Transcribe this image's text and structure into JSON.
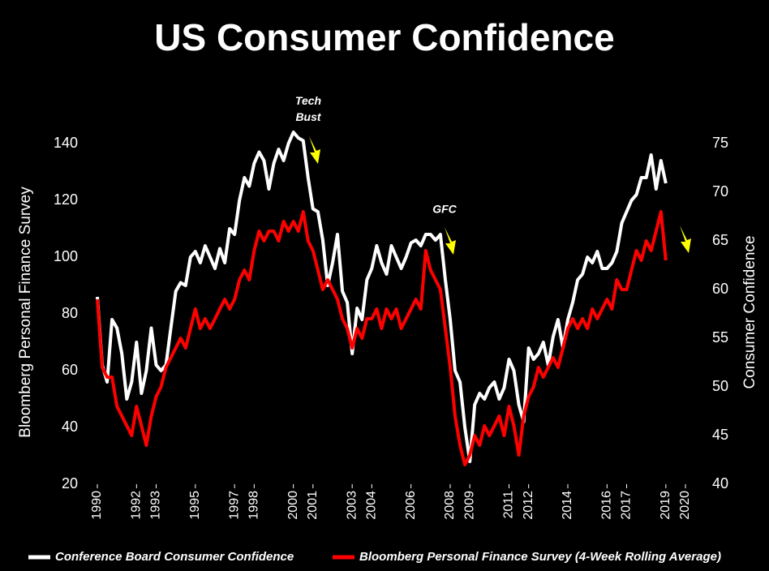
{
  "chart_data": {
    "type": "line",
    "title": "US Consumer Confidence",
    "y_label": "Bloomberg Personal Finance Survey",
    "y2_label": "Consumer Confidence",
    "annotations": [
      "Tech\nBust",
      "GFC"
    ],
    "xlim": [
      1990,
      2020
    ],
    "xticks": [
      1990,
      1992,
      1993,
      1995,
      1997,
      1998,
      2000,
      2001,
      2003,
      2004,
      2006,
      2008,
      2009,
      2011,
      2012,
      2014,
      2016,
      2017,
      2019,
      2020
    ],
    "ylim": [
      20,
      140
    ],
    "yticks": [
      20,
      40,
      60,
      80,
      100,
      120,
      140
    ],
    "y2lim": [
      40,
      75
    ],
    "y2ticks": [
      40,
      45,
      50,
      55,
      60,
      65,
      70,
      75
    ],
    "x": [
      1990,
      1990.25,
      1990.5,
      1990.75,
      1991,
      1991.25,
      1991.5,
      1991.75,
      1992,
      1992.25,
      1992.5,
      1992.75,
      1993,
      1993.25,
      1993.5,
      1993.75,
      1994,
      1994.25,
      1994.5,
      1994.75,
      1995,
      1995.25,
      1995.5,
      1995.75,
      1996,
      1996.25,
      1996.5,
      1996.75,
      1997,
      1997.25,
      1997.5,
      1997.75,
      1998,
      1998.25,
      1998.5,
      1998.75,
      1999,
      1999.25,
      1999.5,
      1999.75,
      2000,
      2000.25,
      2000.5,
      2000.75,
      2001,
      2001.25,
      2001.5,
      2001.75,
      2002,
      2002.25,
      2002.5,
      2002.75,
      2003,
      2003.25,
      2003.5,
      2003.75,
      2004,
      2004.25,
      2004.5,
      2004.75,
      2005,
      2005.25,
      2005.5,
      2005.75,
      2006,
      2006.25,
      2006.5,
      2006.75,
      2007,
      2007.25,
      2007.5,
      2007.75,
      2008,
      2008.25,
      2008.5,
      2008.75,
      2009,
      2009.25,
      2009.5,
      2009.75,
      2010,
      2010.25,
      2010.5,
      2010.75,
      2011,
      2011.25,
      2011.5,
      2011.75,
      2012,
      2012.25,
      2012.5,
      2012.75,
      2013,
      2013.25,
      2013.5,
      2013.75,
      2014,
      2014.25,
      2014.5,
      2014.75,
      2015,
      2015.25,
      2015.5,
      2015.75,
      2016,
      2016.25,
      2016.5,
      2016.75,
      2017,
      2017.25,
      2017.5,
      2017.75,
      2018,
      2018.25,
      2018.5,
      2018.75,
      2019
    ],
    "series": [
      {
        "name": "Conference Board Consumer Confidence",
        "color": "#ffffff",
        "values": [
          86,
          62,
          56,
          78,
          75,
          66,
          50,
          56,
          70,
          52,
          60,
          75,
          62,
          60,
          62,
          75,
          88,
          91,
          90,
          100,
          102,
          98,
          104,
          100,
          96,
          103,
          98,
          110,
          108,
          120,
          128,
          125,
          133,
          137,
          134,
          124,
          133,
          138,
          134,
          140,
          144,
          142,
          141,
          128,
          117,
          116,
          106,
          90,
          98,
          108,
          88,
          84,
          66,
          82,
          78,
          92,
          96,
          104,
          98,
          94,
          104,
          100,
          96,
          100,
          105,
          106,
          104,
          108,
          108,
          106,
          108,
          92,
          78,
          60,
          56,
          40,
          28,
          48,
          52,
          50,
          54,
          56,
          50,
          54,
          64,
          60,
          48,
          42,
          68,
          64,
          66,
          70,
          62,
          72,
          78,
          68,
          78,
          84,
          92,
          94,
          100,
          98,
          102,
          96,
          96,
          98,
          102,
          112,
          116,
          120,
          122,
          128,
          128,
          136,
          124,
          134,
          126
        ]
      },
      {
        "name": "Bloomberg Personal Finance Survey (4-Week Rolling Average)",
        "color": "#ff0000",
        "axis": "y2",
        "values": [
          59,
          52,
          51,
          51,
          48,
          47,
          46,
          45,
          48,
          46,
          44,
          47,
          49,
          50,
          52,
          53,
          54,
          55,
          54,
          56,
          58,
          56,
          57,
          56,
          57,
          58,
          59,
          58,
          59,
          61,
          62,
          61,
          64,
          66,
          65,
          66,
          66,
          65,
          67,
          66,
          67,
          66,
          68,
          65,
          64,
          62,
          60,
          61,
          60,
          59,
          57,
          56,
          54,
          56,
          55,
          57,
          57,
          58,
          56,
          58,
          57,
          58,
          56,
          57,
          58,
          59,
          58,
          64,
          62,
          61,
          60,
          56,
          52,
          47,
          44,
          42,
          43,
          45,
          44,
          46,
          45,
          46,
          47,
          45,
          48,
          46,
          43,
          47,
          49,
          50,
          52,
          51,
          52,
          53,
          52,
          54,
          56,
          57,
          56,
          57,
          56,
          58,
          57,
          58,
          59,
          58,
          61,
          60,
          60,
          62,
          64,
          63,
          65,
          64,
          66,
          68,
          63
        ]
      }
    ]
  }
}
